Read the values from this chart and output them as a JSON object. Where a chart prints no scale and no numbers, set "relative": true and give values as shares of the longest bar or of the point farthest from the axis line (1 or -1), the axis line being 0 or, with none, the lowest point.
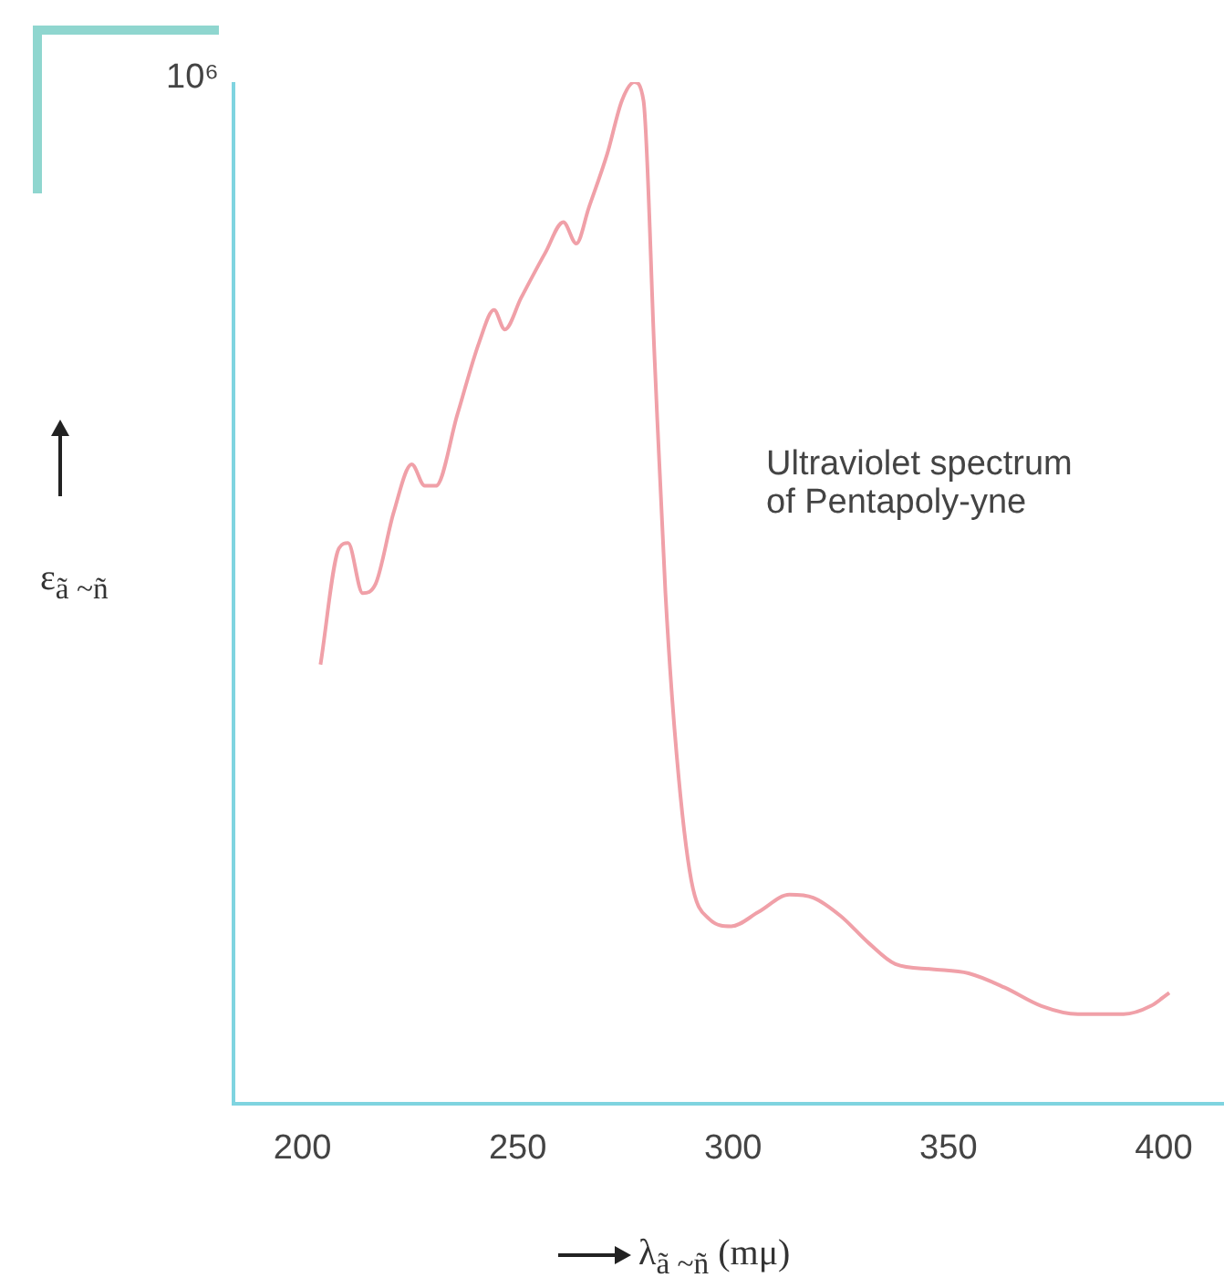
{
  "chart_data": {
    "type": "line",
    "relative": true,
    "xlabel": "λ$_{ã ~ñ}$ (mμ)",
    "ylabel": "ε$_{ã ~ñ}$",
    "annotations": [
      "10⁶",
      "Ultraviolet spectrum\nof Pentapoly-yne"
    ],
    "xlim": [
      184,
      414
    ],
    "xticks": [
      200,
      250,
      300,
      350,
      400
    ],
    "grid": false,
    "legend": false,
    "marker": "none",
    "line_style": "solid",
    "series": [
      {
        "color": "#f0a0a8",
        "x": [
          204.2,
          208.5,
          210.6,
          214,
          217,
          221.2,
          225.4,
          228.4,
          231,
          236,
          241.1,
          244.5,
          247,
          250.8,
          256.4,
          260.6,
          263.6,
          266.5,
          270.8,
          274.2,
          277.1,
          279.2,
          281.8,
          284.3,
          286.9,
          290.3,
          294.5,
          299.6,
          305.9,
          313.1,
          318.6,
          325,
          331.4,
          337.7,
          346.2,
          354.7,
          363.1,
          371.6,
          380.1,
          390.7,
          397,
          401.3
        ],
        "values": [
          0.43,
          0.544,
          0.549,
          0.5,
          0.509,
          0.579,
          0.626,
          0.605,
          0.605,
          0.675,
          0.746,
          0.777,
          0.758,
          0.789,
          0.833,
          0.863,
          0.842,
          0.877,
          0.93,
          0.982,
          1,
          0.982,
          0.728,
          0.5,
          0.342,
          0.219,
          0.181,
          0.174,
          0.188,
          0.205,
          0.202,
          0.184,
          0.158,
          0.137,
          0.132,
          0.128,
          0.114,
          0.096,
          0.088,
          0.088,
          0.096,
          0.109
        ]
      }
    ]
  }
}
